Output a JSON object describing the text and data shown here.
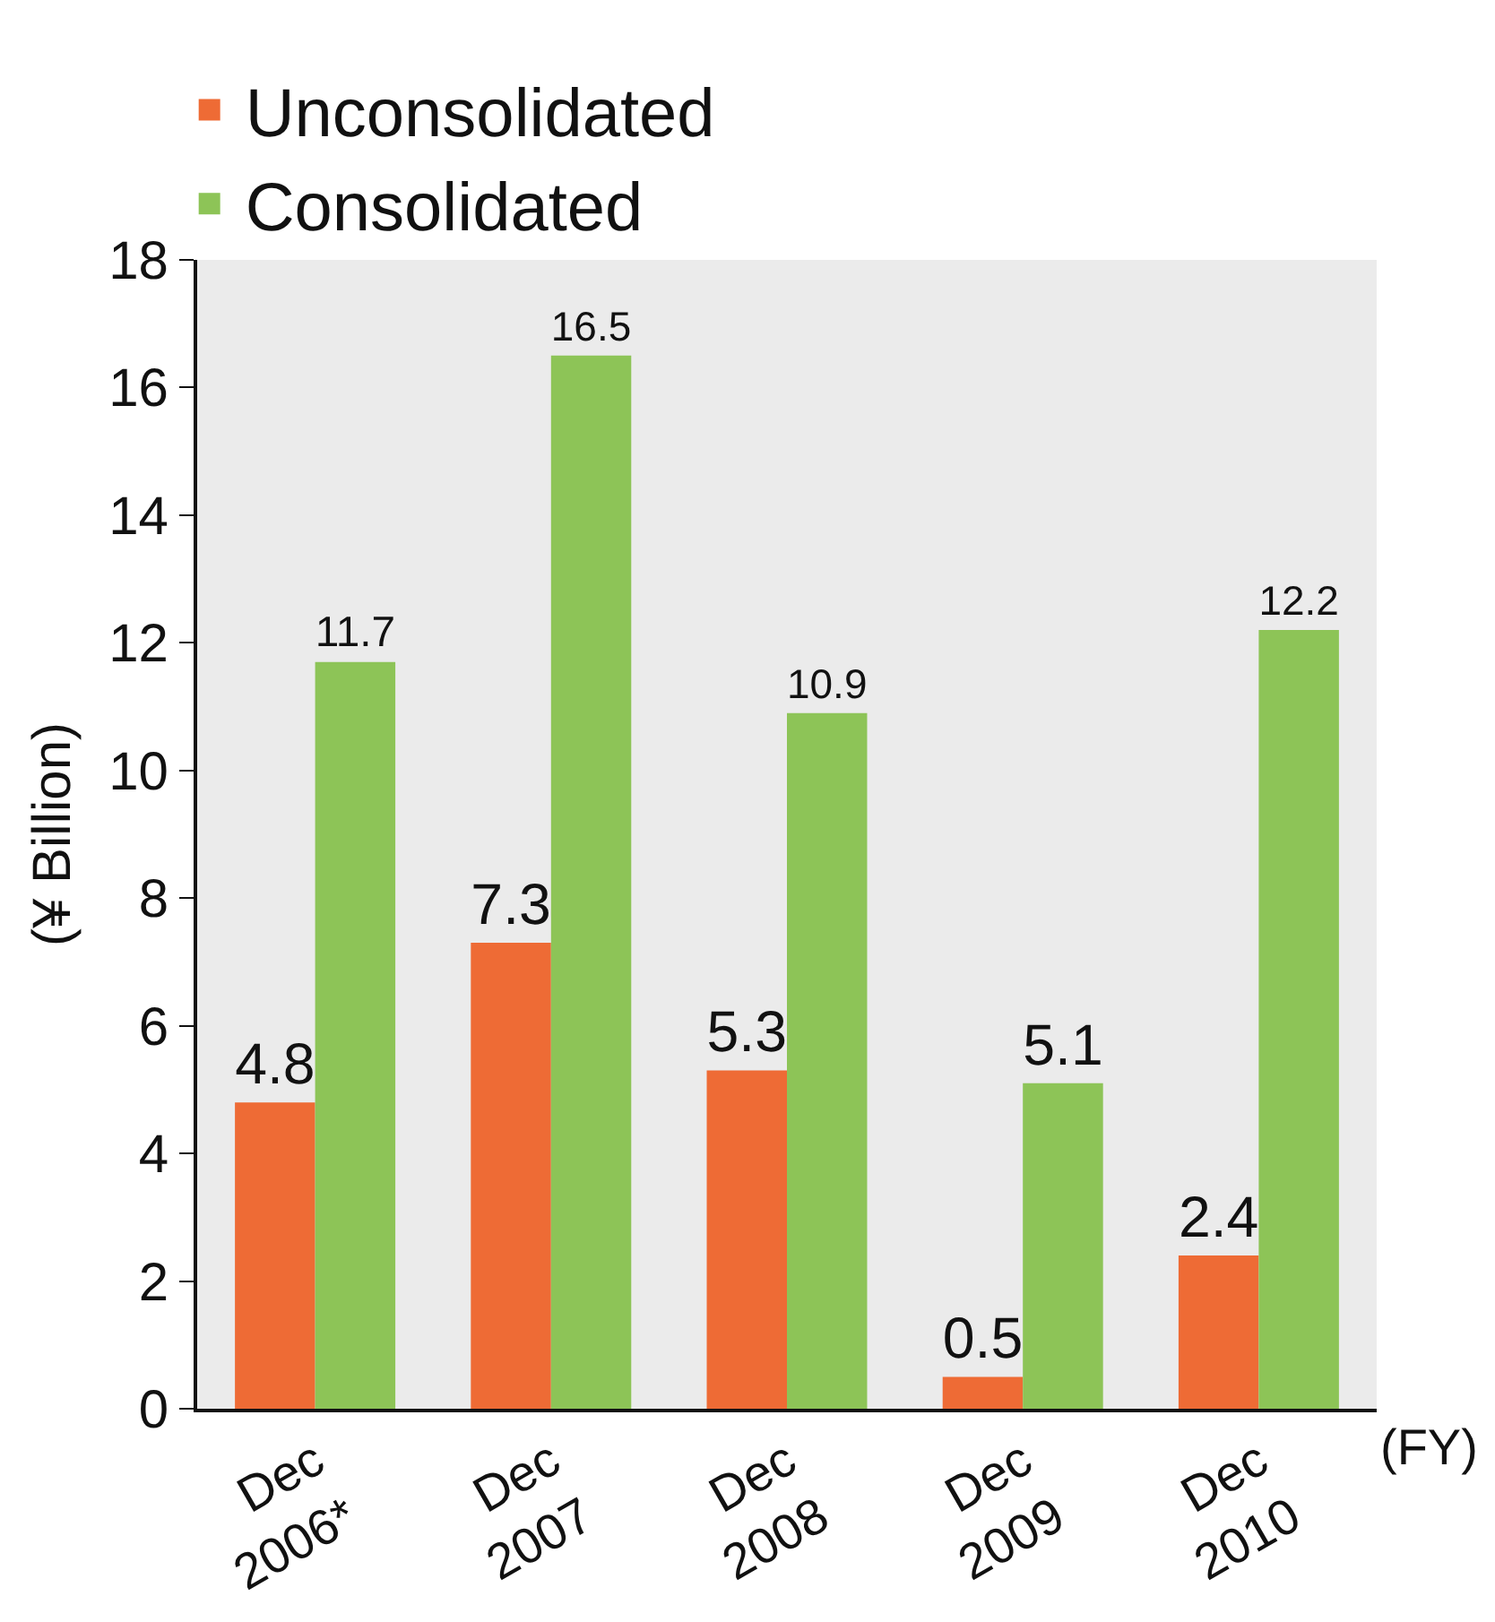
{
  "chart_data": {
    "type": "bar",
    "ylabel": "(¥ Billion)",
    "categories": [
      "Dec\n2006*",
      "Dec\n2007",
      "Dec\n2008",
      "Dec\n2009",
      "Dec\n2010"
    ],
    "series": [
      {
        "name": "Unconsolidated",
        "color": "#ee6b35",
        "values": [
          4.8,
          7.3,
          5.3,
          0.5,
          2.4
        ]
      },
      {
        "name": "Consolidated",
        "color": "#8dc457",
        "values": [
          11.7,
          16.5,
          10.9,
          5.1,
          12.2
        ]
      }
    ],
    "ylim": [
      0,
      18
    ],
    "yticks": [
      0,
      2,
      4,
      6,
      8,
      10,
      12,
      14,
      16,
      18
    ],
    "data_labels": true,
    "legend": "top left",
    "grid": false,
    "annotations": [
      "(FY)"
    ]
  }
}
